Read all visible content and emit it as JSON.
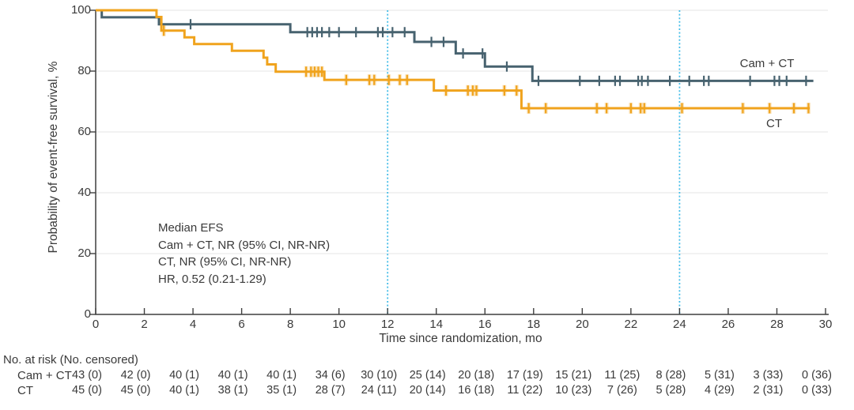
{
  "chart_data": {
    "type": "line",
    "subtype": "kaplan-meier-step",
    "title": "",
    "xlabel": "Time since randomization, mo",
    "ylabel": "Probability of event-free survival, %",
    "xlim": [
      0,
      30
    ],
    "ylim": [
      0,
      100
    ],
    "x_ticks": [
      0,
      2,
      4,
      6,
      8,
      10,
      12,
      14,
      16,
      18,
      20,
      22,
      24,
      26,
      28,
      30
    ],
    "y_ticks": [
      0,
      20,
      40,
      60,
      80,
      100
    ],
    "grid": "horizontal",
    "reference_lines_x": [
      12,
      24
    ],
    "series": [
      {
        "name": "Cam + CT",
        "color": "#47626f",
        "end": 29.5,
        "steps": [
          [
            0,
            100
          ],
          [
            0.25,
            97.7
          ],
          [
            2.6,
            95.4
          ],
          [
            8.0,
            92.8
          ],
          [
            13.1,
            89.6
          ],
          [
            14.8,
            85.8
          ],
          [
            16.0,
            81.5
          ],
          [
            17.95,
            76.8
          ]
        ],
        "censors": [
          [
            3.9,
            95.4
          ],
          [
            8.7,
            92.8
          ],
          [
            8.9,
            92.8
          ],
          [
            9.1,
            92.8
          ],
          [
            9.3,
            92.8
          ],
          [
            9.6,
            92.8
          ],
          [
            10.0,
            92.8
          ],
          [
            10.7,
            92.8
          ],
          [
            11.6,
            92.8
          ],
          [
            11.8,
            92.8
          ],
          [
            12.2,
            92.8
          ],
          [
            12.7,
            92.8
          ],
          [
            13.8,
            89.6
          ],
          [
            14.3,
            89.6
          ],
          [
            15.1,
            85.8
          ],
          [
            15.9,
            85.8
          ],
          [
            16.9,
            81.5
          ],
          [
            18.2,
            76.8
          ],
          [
            19.9,
            76.8
          ],
          [
            20.7,
            76.8
          ],
          [
            21.35,
            76.8
          ],
          [
            21.55,
            76.8
          ],
          [
            22.3,
            76.8
          ],
          [
            22.45,
            76.8
          ],
          [
            22.7,
            76.8
          ],
          [
            23.6,
            76.8
          ],
          [
            24.4,
            76.8
          ],
          [
            25.0,
            76.8
          ],
          [
            25.2,
            76.8
          ],
          [
            26.9,
            76.8
          ],
          [
            27.9,
            76.8
          ],
          [
            28.1,
            76.8
          ],
          [
            28.4,
            76.8
          ],
          [
            29.2,
            76.8
          ]
        ]
      },
      {
        "name": "CT",
        "color": "#f0a31d",
        "end": 29.35,
        "steps": [
          [
            0,
            100
          ],
          [
            2.5,
            97.8
          ],
          [
            2.7,
            93.3
          ],
          [
            3.65,
            91.1
          ],
          [
            4.05,
            88.9
          ],
          [
            5.6,
            86.7
          ],
          [
            6.9,
            84.4
          ],
          [
            7.05,
            82.2
          ],
          [
            7.4,
            79.8
          ],
          [
            9.4,
            77.1
          ],
          [
            13.9,
            73.6
          ],
          [
            17.5,
            67.8
          ]
        ],
        "censors": [
          [
            2.8,
            93.3
          ],
          [
            8.65,
            79.8
          ],
          [
            8.85,
            79.8
          ],
          [
            9.0,
            79.8
          ],
          [
            9.15,
            79.8
          ],
          [
            9.3,
            79.8
          ],
          [
            10.3,
            77.1
          ],
          [
            11.25,
            77.1
          ],
          [
            11.45,
            77.1
          ],
          [
            12.05,
            77.1
          ],
          [
            12.5,
            77.1
          ],
          [
            12.8,
            77.1
          ],
          [
            14.4,
            73.6
          ],
          [
            15.3,
            73.6
          ],
          [
            15.5,
            73.6
          ],
          [
            15.65,
            73.6
          ],
          [
            16.8,
            73.6
          ],
          [
            17.3,
            73.6
          ],
          [
            17.8,
            67.8
          ],
          [
            18.5,
            67.8
          ],
          [
            20.6,
            67.8
          ],
          [
            21.0,
            67.8
          ],
          [
            22.0,
            67.8
          ],
          [
            22.4,
            67.8
          ],
          [
            22.55,
            67.8
          ],
          [
            24.1,
            67.8
          ],
          [
            26.6,
            67.8
          ],
          [
            27.7,
            67.8
          ],
          [
            28.7,
            67.8
          ],
          [
            29.3,
            67.8
          ]
        ]
      }
    ],
    "annotations": [
      "Median EFS",
      "Cam + CT, NR (95% CI, NR-NR)",
      "CT, NR (95% CI, NR-NR)",
      "HR, 0.52 (0.21-1.29)"
    ]
  },
  "colors": {
    "camct": "#47626f",
    "ct": "#f0a31d",
    "reference_line": "#44bde8",
    "grid": "#ebebeb",
    "axis": "#3f3f3f",
    "text": "#3a3a3a"
  },
  "risk_table": {
    "header": "No. at risk (No. censored)",
    "times": [
      0,
      2,
      4,
      6,
      8,
      10,
      12,
      14,
      16,
      18,
      20,
      22,
      24,
      26,
      28,
      30
    ],
    "rows": [
      {
        "label": "Cam + CT",
        "values": [
          "43 (0)",
          "42 (0)",
          "40 (1)",
          "40 (1)",
          "40 (1)",
          "34 (6)",
          "30 (10)",
          "25 (14)",
          "20 (18)",
          "17 (19)",
          "15 (21)",
          "11 (25)",
          "8 (28)",
          "5 (31)",
          "3 (33)",
          "0 (36)"
        ]
      },
      {
        "label": "CT",
        "values": [
          "45 (0)",
          "45 (0)",
          "40 (1)",
          "38 (1)",
          "35 (1)",
          "28 (7)",
          "24 (11)",
          "20 (14)",
          "16 (18)",
          "11 (22)",
          "10 (23)",
          "7 (26)",
          "5 (28)",
          "4 (29)",
          "2 (31)",
          "0 (33)"
        ]
      }
    ]
  }
}
